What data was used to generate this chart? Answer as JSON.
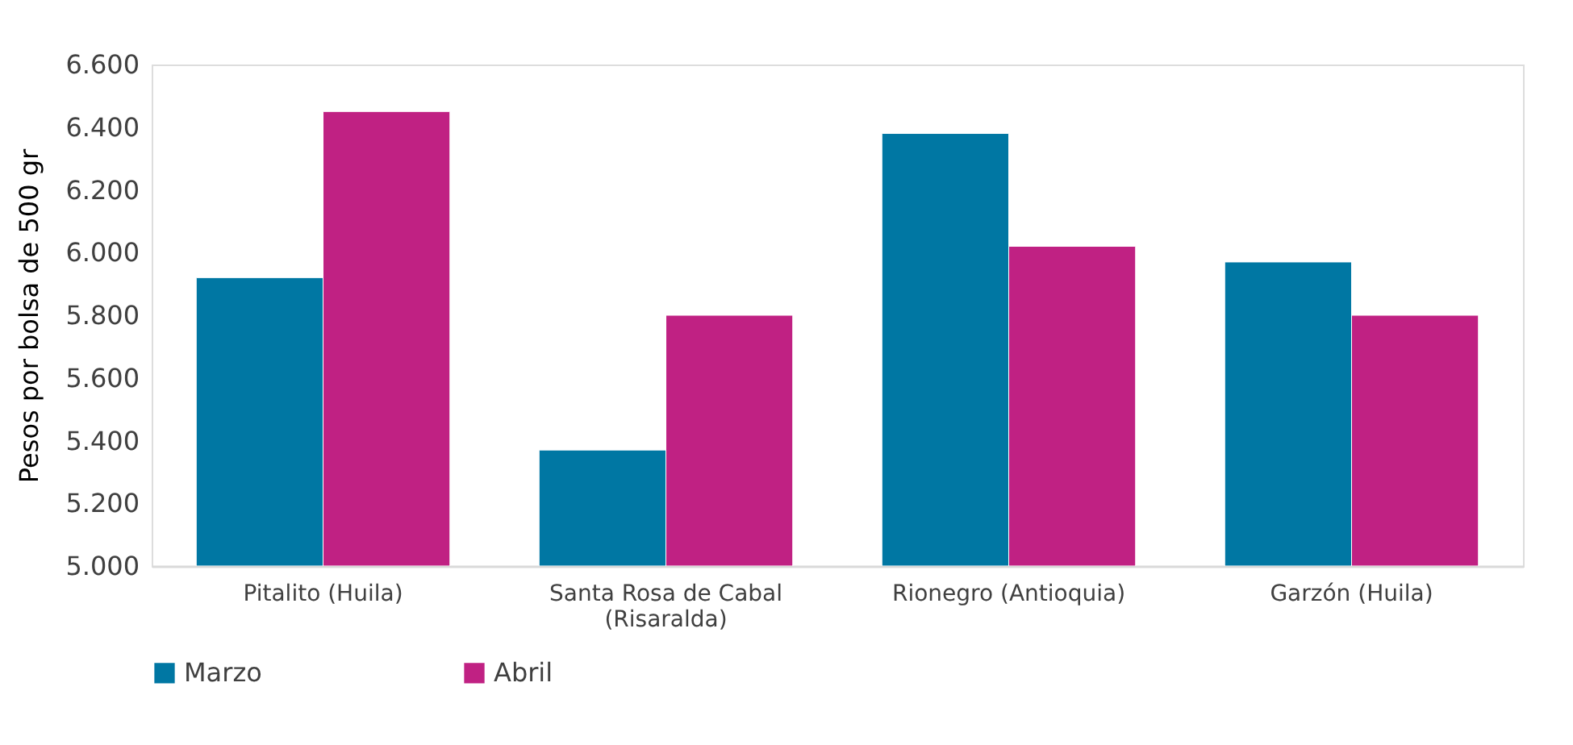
{
  "chart_data": {
    "type": "bar",
    "ylabel": "Pesos por bolsa de 500 gr",
    "categories": [
      "Pitalito (Huila)",
      "Santa Rosa de Cabal (Risaralda)",
      "Rionegro (Antioquia)",
      "Garzón (Huila)"
    ],
    "series": [
      {
        "name": "Marzo",
        "color": "#0077a3",
        "values": [
          5920,
          5370,
          6380,
          5970
        ]
      },
      {
        "name": "Abril",
        "color": "#c02183",
        "values": [
          6450,
          5800,
          6020,
          5800
        ]
      }
    ],
    "ylim": [
      5000,
      6600
    ],
    "yticks": [
      {
        "value": 5000,
        "label": "5.000"
      },
      {
        "value": 5200,
        "label": "5.200"
      },
      {
        "value": 5400,
        "label": "5.400"
      },
      {
        "value": 5600,
        "label": "5.600"
      },
      {
        "value": 5800,
        "label": "5.800"
      },
      {
        "value": 6000,
        "label": "6.000"
      },
      {
        "value": 6200,
        "label": "6.200"
      },
      {
        "value": 6400,
        "label": "6.400"
      },
      {
        "value": 6600,
        "label": "6.600"
      }
    ],
    "grid": false,
    "legend": "bottom"
  }
}
